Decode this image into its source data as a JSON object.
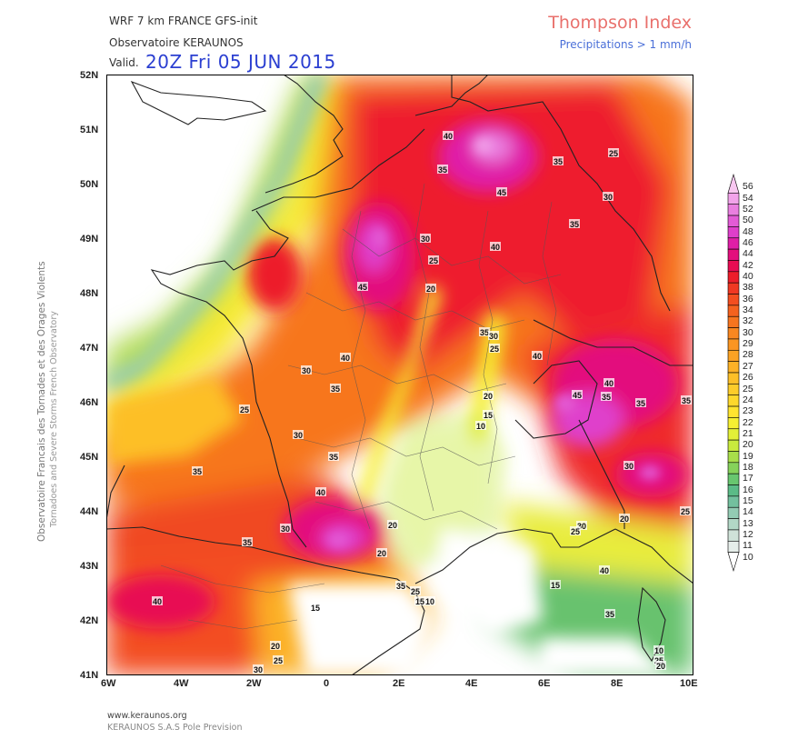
{
  "header": {
    "model": "WRF 7 km FRANCE   GFS-init",
    "organization": "Observatoire KERAUNOS",
    "valid_label": "Valid.",
    "valid_time": "20Z Fri 05 JUN 2015",
    "title": "Thompson Index",
    "subtitle": "Precipitations > 1 mm/h"
  },
  "side_text": {
    "line1": "Observatoire Francais des Tornades et des Orages Violents",
    "line2": "Tornadoes and Severe Storms French Observatory"
  },
  "axes": {
    "lat_labels": [
      "52N",
      "51N",
      "50N",
      "49N",
      "48N",
      "47N",
      "46N",
      "45N",
      "44N",
      "43N",
      "42N",
      "41N"
    ],
    "lon_labels": [
      "6W",
      "4W",
      "2W",
      "0",
      "2E",
      "4E",
      "6E",
      "8E",
      "10E"
    ]
  },
  "legend": {
    "levels": [
      "56",
      "54",
      "52",
      "50",
      "48",
      "46",
      "44",
      "42",
      "40",
      "38",
      "36",
      "34",
      "32",
      "30",
      "29",
      "28",
      "27",
      "26",
      "25",
      "24",
      "23",
      "22",
      "21",
      "20",
      "19",
      "18",
      "17",
      "16",
      "15",
      "14",
      "13",
      "12",
      "11",
      "10"
    ],
    "colors": [
      "#f7c7f0",
      "#f2a3ea",
      "#ea7fe0",
      "#e35bd6",
      "#df3fcb",
      "#e01ea7",
      "#e30f7d",
      "#e80c52",
      "#ed1d2a",
      "#f03822",
      "#f34e1f",
      "#f5621e",
      "#f7751f",
      "#f98720",
      "#fa9522",
      "#fba224",
      "#fcb126",
      "#fdbf28",
      "#fdcc2a",
      "#fed82c",
      "#ffe42f",
      "#f6ef32",
      "#e3f038",
      "#c9ea3e",
      "#a8de4a",
      "#86d25a",
      "#68c66f",
      "#5bbb87",
      "#73c09e",
      "#93cbb3",
      "#b2d7c6",
      "#cfe2d8",
      "#e6eeea",
      "#ffffff"
    ]
  },
  "contour_labels": [
    {
      "t": "40"
    },
    {
      "t": "35"
    },
    {
      "t": "45"
    },
    {
      "t": "25"
    },
    {
      "t": "35"
    },
    {
      "t": "30"
    },
    {
      "t": "35"
    },
    {
      "t": "30"
    },
    {
      "t": "40"
    },
    {
      "t": "25"
    },
    {
      "t": "45"
    },
    {
      "t": "20"
    },
    {
      "t": "35"
    },
    {
      "t": "30"
    },
    {
      "t": "25"
    },
    {
      "t": "40"
    },
    {
      "t": "40"
    },
    {
      "t": "30"
    },
    {
      "t": "35"
    },
    {
      "t": "20"
    },
    {
      "t": "15"
    },
    {
      "t": "10"
    },
    {
      "t": "45"
    },
    {
      "t": "40"
    },
    {
      "t": "35"
    },
    {
      "t": "35"
    },
    {
      "t": "35"
    },
    {
      "t": "25"
    },
    {
      "t": "30"
    },
    {
      "t": "35"
    },
    {
      "t": "40"
    },
    {
      "t": "30"
    },
    {
      "t": "35"
    },
    {
      "t": "20"
    },
    {
      "t": "35"
    },
    {
      "t": "40"
    },
    {
      "t": "30"
    },
    {
      "t": "20"
    },
    {
      "t": "25"
    },
    {
      "t": "30"
    },
    {
      "t": "25"
    },
    {
      "t": "20"
    },
    {
      "t": "35"
    },
    {
      "t": "25"
    },
    {
      "t": "15"
    },
    {
      "t": "10"
    },
    {
      "t": "15"
    },
    {
      "t": "15"
    },
    {
      "t": "40"
    },
    {
      "t": "35"
    },
    {
      "t": "10"
    },
    {
      "t": "20"
    },
    {
      "t": "25"
    },
    {
      "t": "30"
    },
    {
      "t": "25"
    },
    {
      "t": "20"
    }
  ],
  "footer": {
    "url": "www.keraunos.org",
    "company": "KERAUNOS S.A.S Pole Prevision"
  }
}
